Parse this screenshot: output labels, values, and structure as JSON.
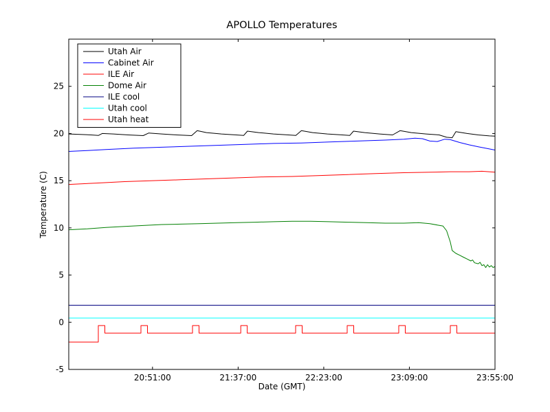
{
  "figure": {
    "background": "#ffffff",
    "frame_color": "#000000"
  },
  "chart_data": {
    "type": "line",
    "title": "APOLLO Temperatures",
    "xlabel": "Date (GMT)",
    "ylabel": "Temperature (C)",
    "x_unit": "minutes from left edge of visible time range",
    "xlim": [
      0,
      229
    ],
    "ylim": [
      -5,
      30
    ],
    "grid": false,
    "legend_position": "upper left",
    "x_ticks": [
      {
        "t": 45,
        "label": "20:51:00"
      },
      {
        "t": 91,
        "label": "21:37:00"
      },
      {
        "t": 137,
        "label": "22:23:00"
      },
      {
        "t": 183,
        "label": "23:09:00"
      },
      {
        "t": 229,
        "label": "23:55:00"
      }
    ],
    "y_ticks": [
      -5,
      0,
      5,
      10,
      15,
      20,
      25
    ],
    "series": [
      {
        "name": "Utah Air",
        "color": "#000000",
        "points": [
          [
            0,
            19.95
          ],
          [
            6,
            19.9
          ],
          [
            12,
            19.85
          ],
          [
            16,
            19.8
          ],
          [
            18,
            20.0
          ],
          [
            24,
            19.95
          ],
          [
            32,
            19.85
          ],
          [
            40,
            19.78
          ],
          [
            43,
            20.05
          ],
          [
            50,
            19.95
          ],
          [
            58,
            19.85
          ],
          [
            66,
            19.78
          ],
          [
            69,
            20.3
          ],
          [
            74,
            20.1
          ],
          [
            82,
            19.95
          ],
          [
            90,
            19.85
          ],
          [
            94,
            19.8
          ],
          [
            96,
            20.25
          ],
          [
            102,
            20.1
          ],
          [
            110,
            19.95
          ],
          [
            118,
            19.85
          ],
          [
            122,
            19.8
          ],
          [
            125,
            20.3
          ],
          [
            131,
            20.1
          ],
          [
            139,
            19.95
          ],
          [
            147,
            19.85
          ],
          [
            151,
            19.8
          ],
          [
            153,
            20.25
          ],
          [
            159,
            20.1
          ],
          [
            167,
            19.95
          ],
          [
            174,
            19.85
          ],
          [
            178,
            20.3
          ],
          [
            184,
            20.1
          ],
          [
            192,
            19.95
          ],
          [
            199,
            19.85
          ],
          [
            203,
            19.6
          ],
          [
            206,
            19.55
          ],
          [
            208,
            20.2
          ],
          [
            214,
            20.0
          ],
          [
            220,
            19.85
          ],
          [
            226,
            19.75
          ],
          [
            229,
            19.72
          ]
        ]
      },
      {
        "name": "Cabinet Air",
        "color": "#0000ff",
        "points": [
          [
            0,
            18.1
          ],
          [
            10,
            18.2
          ],
          [
            20,
            18.3
          ],
          [
            35,
            18.45
          ],
          [
            50,
            18.55
          ],
          [
            65,
            18.65
          ],
          [
            80,
            18.75
          ],
          [
            95,
            18.85
          ],
          [
            110,
            18.95
          ],
          [
            125,
            19.0
          ],
          [
            140,
            19.1
          ],
          [
            155,
            19.2
          ],
          [
            170,
            19.3
          ],
          [
            180,
            19.4
          ],
          [
            186,
            19.5
          ],
          [
            190,
            19.45
          ],
          [
            194,
            19.2
          ],
          [
            198,
            19.15
          ],
          [
            202,
            19.4
          ],
          [
            205,
            19.35
          ],
          [
            210,
            19.05
          ],
          [
            215,
            18.8
          ],
          [
            220,
            18.6
          ],
          [
            225,
            18.4
          ],
          [
            229,
            18.25
          ]
        ]
      },
      {
        "name": "ILE Air",
        "color": "#ff0000",
        "points": [
          [
            0,
            14.6
          ],
          [
            15,
            14.75
          ],
          [
            30,
            14.9
          ],
          [
            45,
            15.0
          ],
          [
            60,
            15.1
          ],
          [
            75,
            15.2
          ],
          [
            90,
            15.3
          ],
          [
            105,
            15.4
          ],
          [
            120,
            15.45
          ],
          [
            135,
            15.55
          ],
          [
            150,
            15.65
          ],
          [
            165,
            15.75
          ],
          [
            180,
            15.85
          ],
          [
            195,
            15.9
          ],
          [
            205,
            15.95
          ],
          [
            215,
            15.95
          ],
          [
            222,
            16.0
          ],
          [
            229,
            15.9
          ]
        ]
      },
      {
        "name": "Dome Air",
        "color": "#007f00",
        "points": [
          [
            0,
            9.8
          ],
          [
            10,
            9.9
          ],
          [
            20,
            10.05
          ],
          [
            30,
            10.15
          ],
          [
            40,
            10.25
          ],
          [
            50,
            10.35
          ],
          [
            60,
            10.4
          ],
          [
            70,
            10.45
          ],
          [
            80,
            10.5
          ],
          [
            90,
            10.55
          ],
          [
            100,
            10.6
          ],
          [
            110,
            10.65
          ],
          [
            120,
            10.7
          ],
          [
            130,
            10.7
          ],
          [
            140,
            10.65
          ],
          [
            150,
            10.6
          ],
          [
            160,
            10.55
          ],
          [
            170,
            10.5
          ],
          [
            180,
            10.5
          ],
          [
            188,
            10.55
          ],
          [
            194,
            10.45
          ],
          [
            198,
            10.3
          ],
          [
            201,
            10.2
          ],
          [
            203,
            9.7
          ],
          [
            205,
            8.5
          ],
          [
            206,
            7.6
          ],
          [
            208,
            7.3
          ],
          [
            210,
            7.1
          ],
          [
            212,
            6.9
          ],
          [
            214,
            6.7
          ],
          [
            216,
            6.5
          ],
          [
            217,
            6.6
          ],
          [
            218,
            6.3
          ],
          [
            220,
            6.2
          ],
          [
            221,
            6.35
          ],
          [
            222,
            6.0
          ],
          [
            223,
            6.1
          ],
          [
            224,
            5.8
          ],
          [
            225,
            6.1
          ],
          [
            226,
            5.85
          ],
          [
            227,
            6.0
          ],
          [
            228,
            5.8
          ],
          [
            229,
            5.9
          ]
        ]
      },
      {
        "name": "ILE cool",
        "color": "#000080",
        "points": [
          [
            0,
            1.8
          ],
          [
            229,
            1.8
          ]
        ]
      },
      {
        "name": "Utah cool",
        "color": "#00ffff",
        "points": [
          [
            0,
            0.45
          ],
          [
            229,
            0.45
          ]
        ]
      },
      {
        "name": "Utah heat",
        "color": "#ff0000",
        "points": [
          [
            0,
            -2.1
          ],
          [
            15.9,
            -2.1
          ],
          [
            15.9,
            -0.35
          ],
          [
            19.4,
            -0.35
          ],
          [
            19.4,
            -1.15
          ],
          [
            38.8,
            -1.15
          ],
          [
            38.8,
            -0.35
          ],
          [
            42.3,
            -0.35
          ],
          [
            42.3,
            -1.15
          ],
          [
            66.5,
            -1.15
          ],
          [
            66.5,
            -0.35
          ],
          [
            70,
            -0.35
          ],
          [
            70,
            -1.15
          ],
          [
            92.4,
            -1.15
          ],
          [
            92.4,
            -0.35
          ],
          [
            95.9,
            -0.35
          ],
          [
            95.9,
            -1.15
          ],
          [
            121.9,
            -1.15
          ],
          [
            121.9,
            -0.35
          ],
          [
            125.4,
            -0.35
          ],
          [
            125.4,
            -1.15
          ],
          [
            149.6,
            -1.15
          ],
          [
            149.6,
            -0.35
          ],
          [
            153.1,
            -0.35
          ],
          [
            153.1,
            -1.15
          ],
          [
            177.3,
            -1.15
          ],
          [
            177.3,
            -0.35
          ],
          [
            180.8,
            -0.35
          ],
          [
            180.8,
            -1.15
          ],
          [
            205,
            -1.15
          ],
          [
            205,
            -0.35
          ],
          [
            208.5,
            -0.35
          ],
          [
            208.5,
            -1.15
          ],
          [
            229,
            -1.15
          ]
        ]
      }
    ]
  }
}
